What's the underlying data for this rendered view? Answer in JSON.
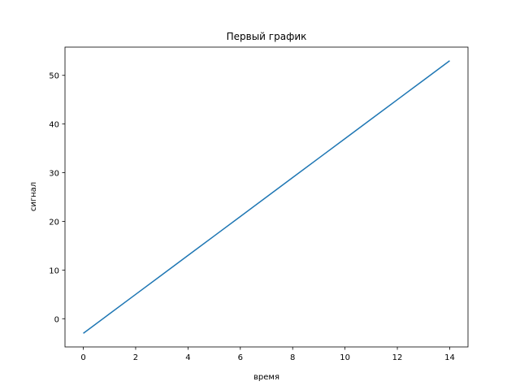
{
  "chart_data": {
    "type": "line",
    "title": "Первый график",
    "xlabel": "время",
    "ylabel": "сигнал",
    "xlim": [
      -0.7,
      14.7
    ],
    "ylim": [
      -5.8,
      55.8
    ],
    "xticks": [
      0,
      2,
      4,
      6,
      8,
      10,
      12,
      14
    ],
    "yticks": [
      0,
      10,
      20,
      30,
      40,
      50
    ],
    "grid": false,
    "series": [
      {
        "color": "#1f77b4",
        "x": [
          0,
          1,
          2,
          3,
          4,
          5,
          6,
          7,
          8,
          9,
          10,
          11,
          12,
          13,
          14
        ],
        "y": [
          -3,
          1,
          5,
          9,
          13,
          17,
          21,
          25,
          29,
          33,
          37,
          41,
          45,
          49,
          53
        ]
      }
    ]
  }
}
